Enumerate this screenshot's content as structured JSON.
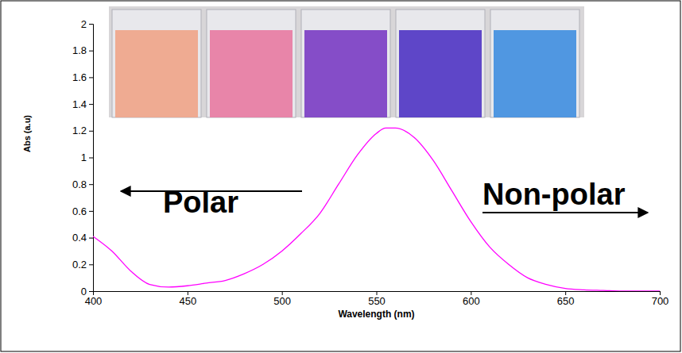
{
  "chart_data": {
    "type": "line",
    "x_label": "Wavelength (nm)",
    "y_label": "Abs (a.u)",
    "annotations": [
      "Polar",
      "Non-polar"
    ],
    "color": "#ff00ff",
    "x": [
      400,
      410,
      420,
      430,
      440,
      450,
      460,
      470,
      480,
      490,
      500,
      510,
      520,
      530,
      540,
      550,
      555,
      560,
      570,
      580,
      590,
      600,
      610,
      620,
      630,
      640,
      650,
      660,
      670,
      680,
      690,
      700
    ],
    "values": [
      0.41,
      0.3,
      0.15,
      0.05,
      0.03,
      0.04,
      0.06,
      0.08,
      0.13,
      0.2,
      0.3,
      0.43,
      0.58,
      0.8,
      1.02,
      1.18,
      1.22,
      1.22,
      1.15,
      0.98,
      0.75,
      0.52,
      0.33,
      0.2,
      0.1,
      0.05,
      0.02,
      0.01,
      0.005,
      0,
      0,
      0
    ],
    "xlim": [
      400,
      700
    ],
    "xticks": [
      400,
      450,
      500,
      550,
      600,
      650,
      700
    ],
    "ylim": [
      0,
      2
    ],
    "yticks": [
      0,
      0.2,
      0.4,
      0.6,
      0.8,
      1,
      1.2,
      1.4,
      1.6,
      1.8,
      2
    ],
    "grid": false
  }
}
